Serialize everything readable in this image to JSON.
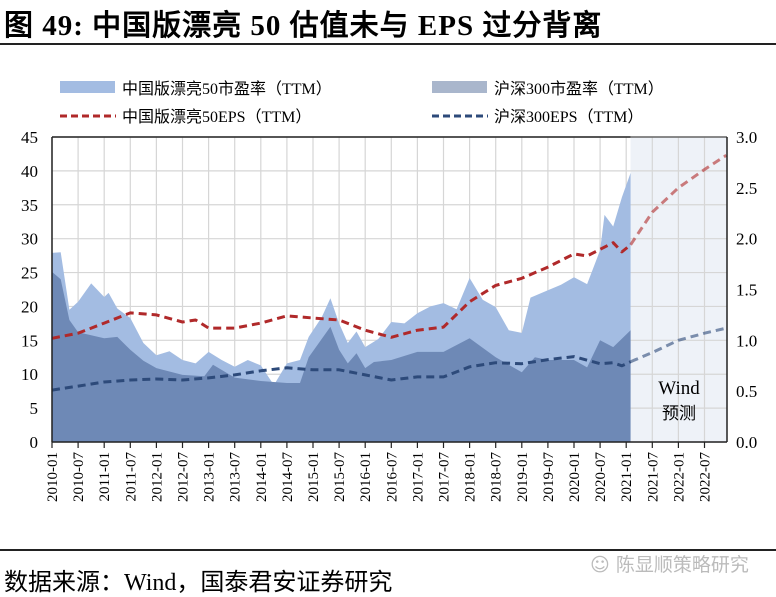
{
  "title": "图 49:  中国版漂亮 50  估值未与 EPS 过分背离",
  "source": "数据来源：Wind，国泰君安证券研究",
  "watermark": "陈显顺策略研究",
  "chart_data": {
    "type": "area+line",
    "left_axis": {
      "ylim": [
        0,
        45
      ],
      "ticks": [
        "0",
        "5",
        "10",
        "15",
        "20",
        "25",
        "30",
        "35",
        "40",
        "45"
      ]
    },
    "right_axis": {
      "ylim": [
        0,
        3.0
      ],
      "ticks": [
        "0.0",
        "0.5",
        "1.0",
        "1.5",
        "2.0",
        "2.5",
        "3.0"
      ]
    },
    "x_ticks": [
      "2010-01",
      "2010-07",
      "2011-01",
      "2011-07",
      "2012-01",
      "2012-07",
      "2013-01",
      "2013-07",
      "2014-01",
      "2014-07",
      "2015-01",
      "2015-07",
      "2016-01",
      "2016-07",
      "2017-01",
      "2017-07",
      "2018-01",
      "2018-07",
      "2019-01",
      "2019-07",
      "2020-01",
      "2020-07",
      "2021-01",
      "2021-07",
      "2022-01",
      "2022-07"
    ],
    "xlim": [
      "2010-01",
      "2022-12"
    ],
    "grid": true,
    "legend_position": "top",
    "forecast": {
      "start": "2021-02",
      "label_line1": "Wind",
      "label_line2": "预测",
      "shade_color": "#eef2f8"
    },
    "colors": {
      "china50_pe": "#a3bce2",
      "hs300_pe": "#6e89b6",
      "china50_eps": "#b0292a",
      "hs300_eps": "#2d4a7a"
    },
    "series": [
      {
        "name": "中国版漂亮50市盈率（TTM）",
        "kind": "area",
        "axis": "left",
        "key": "china50_pe",
        "points": [
          [
            "2010-01",
            27.9
          ],
          [
            "2010-03",
            28.0
          ],
          [
            "2010-05",
            19.5
          ],
          [
            "2010-07",
            20.7
          ],
          [
            "2010-10",
            23.4
          ],
          [
            "2011-01",
            21.4
          ],
          [
            "2011-02",
            22.0
          ],
          [
            "2011-04",
            19.7
          ],
          [
            "2011-07",
            18.3
          ],
          [
            "2011-10",
            14.6
          ],
          [
            "2012-01",
            12.8
          ],
          [
            "2012-04",
            13.4
          ],
          [
            "2012-07",
            12.1
          ],
          [
            "2012-10",
            11.6
          ],
          [
            "2013-01",
            13.3
          ],
          [
            "2013-04",
            12.1
          ],
          [
            "2013-07",
            11.1
          ],
          [
            "2013-10",
            12.1
          ],
          [
            "2014-01",
            11.3
          ],
          [
            "2014-04",
            8.4
          ],
          [
            "2014-07",
            11.6
          ],
          [
            "2014-10",
            12.1
          ],
          [
            "2014-12",
            15.5
          ],
          [
            "2015-03",
            18.4
          ],
          [
            "2015-05",
            21.2
          ],
          [
            "2015-07",
            17.5
          ],
          [
            "2015-09",
            14.6
          ],
          [
            "2015-11",
            16.3
          ],
          [
            "2016-01",
            14.0
          ],
          [
            "2016-04",
            15.2
          ],
          [
            "2016-07",
            17.7
          ],
          [
            "2016-10",
            17.5
          ],
          [
            "2017-01",
            19.0
          ],
          [
            "2017-04",
            20.0
          ],
          [
            "2017-07",
            20.5
          ],
          [
            "2017-10",
            19.6
          ],
          [
            "2018-01",
            24.2
          ],
          [
            "2018-04",
            21.0
          ],
          [
            "2018-07",
            19.9
          ],
          [
            "2018-10",
            16.5
          ],
          [
            "2019-01",
            16.1
          ],
          [
            "2019-03",
            21.3
          ],
          [
            "2019-07",
            22.4
          ],
          [
            "2019-10",
            23.2
          ],
          [
            "2020-01",
            24.3
          ],
          [
            "2020-04",
            23.3
          ],
          [
            "2020-07",
            28.3
          ],
          [
            "2020-08",
            33.5
          ],
          [
            "2020-10",
            31.8
          ],
          [
            "2020-12",
            36.1
          ],
          [
            "2021-02",
            39.7
          ]
        ]
      },
      {
        "name": "沪深300市盈率（TTM）",
        "kind": "area",
        "axis": "left",
        "key": "hs300_pe",
        "points": [
          [
            "2010-01",
            25.1
          ],
          [
            "2010-03",
            24.0
          ],
          [
            "2010-05",
            18.0
          ],
          [
            "2010-07",
            16.2
          ],
          [
            "2011-01",
            15.3
          ],
          [
            "2011-04",
            15.5
          ],
          [
            "2011-07",
            13.6
          ],
          [
            "2011-10",
            12.0
          ],
          [
            "2012-01",
            10.9
          ],
          [
            "2012-07",
            9.9
          ],
          [
            "2012-12",
            9.7
          ],
          [
            "2013-02",
            11.4
          ],
          [
            "2013-07",
            9.5
          ],
          [
            "2014-01",
            9.0
          ],
          [
            "2014-07",
            8.7
          ],
          [
            "2014-10",
            8.7
          ],
          [
            "2014-12",
            12.5
          ],
          [
            "2015-05",
            17.0
          ],
          [
            "2015-07",
            13.6
          ],
          [
            "2015-09",
            11.6
          ],
          [
            "2015-11",
            13.1
          ],
          [
            "2016-01",
            10.9
          ],
          [
            "2016-03",
            11.8
          ],
          [
            "2016-07",
            12.1
          ],
          [
            "2017-01",
            13.3
          ],
          [
            "2017-07",
            13.3
          ],
          [
            "2018-01",
            15.3
          ],
          [
            "2018-07",
            12.5
          ],
          [
            "2019-01",
            10.3
          ],
          [
            "2019-04",
            12.5
          ],
          [
            "2019-07",
            12.1
          ],
          [
            "2020-01",
            12.1
          ],
          [
            "2020-04",
            11.0
          ],
          [
            "2020-07",
            15.0
          ],
          [
            "2020-10",
            14.0
          ],
          [
            "2021-02",
            16.5
          ]
        ]
      },
      {
        "name": "中国版漂亮50EPS（TTM）",
        "kind": "dashed-line",
        "axis": "right",
        "key": "china50_eps",
        "points": [
          [
            "2010-01",
            1.02
          ],
          [
            "2010-07",
            1.07
          ],
          [
            "2011-01",
            1.17
          ],
          [
            "2011-07",
            1.27
          ],
          [
            "2012-01",
            1.25
          ],
          [
            "2012-07",
            1.18
          ],
          [
            "2012-10",
            1.2
          ],
          [
            "2013-01",
            1.12
          ],
          [
            "2013-07",
            1.12
          ],
          [
            "2014-01",
            1.17
          ],
          [
            "2014-07",
            1.24
          ],
          [
            "2015-01",
            1.22
          ],
          [
            "2015-07",
            1.2
          ],
          [
            "2016-01",
            1.1
          ],
          [
            "2016-07",
            1.03
          ],
          [
            "2017-01",
            1.1
          ],
          [
            "2017-07",
            1.13
          ],
          [
            "2018-01",
            1.38
          ],
          [
            "2018-07",
            1.54
          ],
          [
            "2019-01",
            1.61
          ],
          [
            "2019-07",
            1.72
          ],
          [
            "2020-01",
            1.85
          ],
          [
            "2020-04",
            1.83
          ],
          [
            "2020-10",
            1.96
          ],
          [
            "2020-12",
            1.87
          ],
          [
            "2021-02",
            1.94
          ],
          [
            "2021-07",
            2.26
          ],
          [
            "2022-01",
            2.5
          ],
          [
            "2022-07",
            2.68
          ],
          [
            "2022-12",
            2.82
          ]
        ]
      },
      {
        "name": "沪深300EPS（TTM）",
        "kind": "dashed-line",
        "axis": "right",
        "key": "hs300_eps",
        "points": [
          [
            "2010-01",
            0.51
          ],
          [
            "2010-07",
            0.55
          ],
          [
            "2011-01",
            0.59
          ],
          [
            "2011-07",
            0.61
          ],
          [
            "2012-01",
            0.62
          ],
          [
            "2012-07",
            0.61
          ],
          [
            "2013-01",
            0.63
          ],
          [
            "2013-07",
            0.66
          ],
          [
            "2014-01",
            0.7
          ],
          [
            "2014-07",
            0.73
          ],
          [
            "2015-01",
            0.71
          ],
          [
            "2015-07",
            0.71
          ],
          [
            "2016-01",
            0.66
          ],
          [
            "2016-07",
            0.61
          ],
          [
            "2017-01",
            0.64
          ],
          [
            "2017-07",
            0.64
          ],
          [
            "2018-01",
            0.74
          ],
          [
            "2018-07",
            0.78
          ],
          [
            "2019-01",
            0.77
          ],
          [
            "2019-07",
            0.81
          ],
          [
            "2020-01",
            0.84
          ],
          [
            "2020-07",
            0.77
          ],
          [
            "2020-10",
            0.78
          ],
          [
            "2020-12",
            0.75
          ],
          [
            "2021-02",
            0.79
          ],
          [
            "2021-07",
            0.88
          ],
          [
            "2022-01",
            1.0
          ],
          [
            "2022-07",
            1.07
          ],
          [
            "2022-12",
            1.12
          ]
        ]
      }
    ]
  }
}
